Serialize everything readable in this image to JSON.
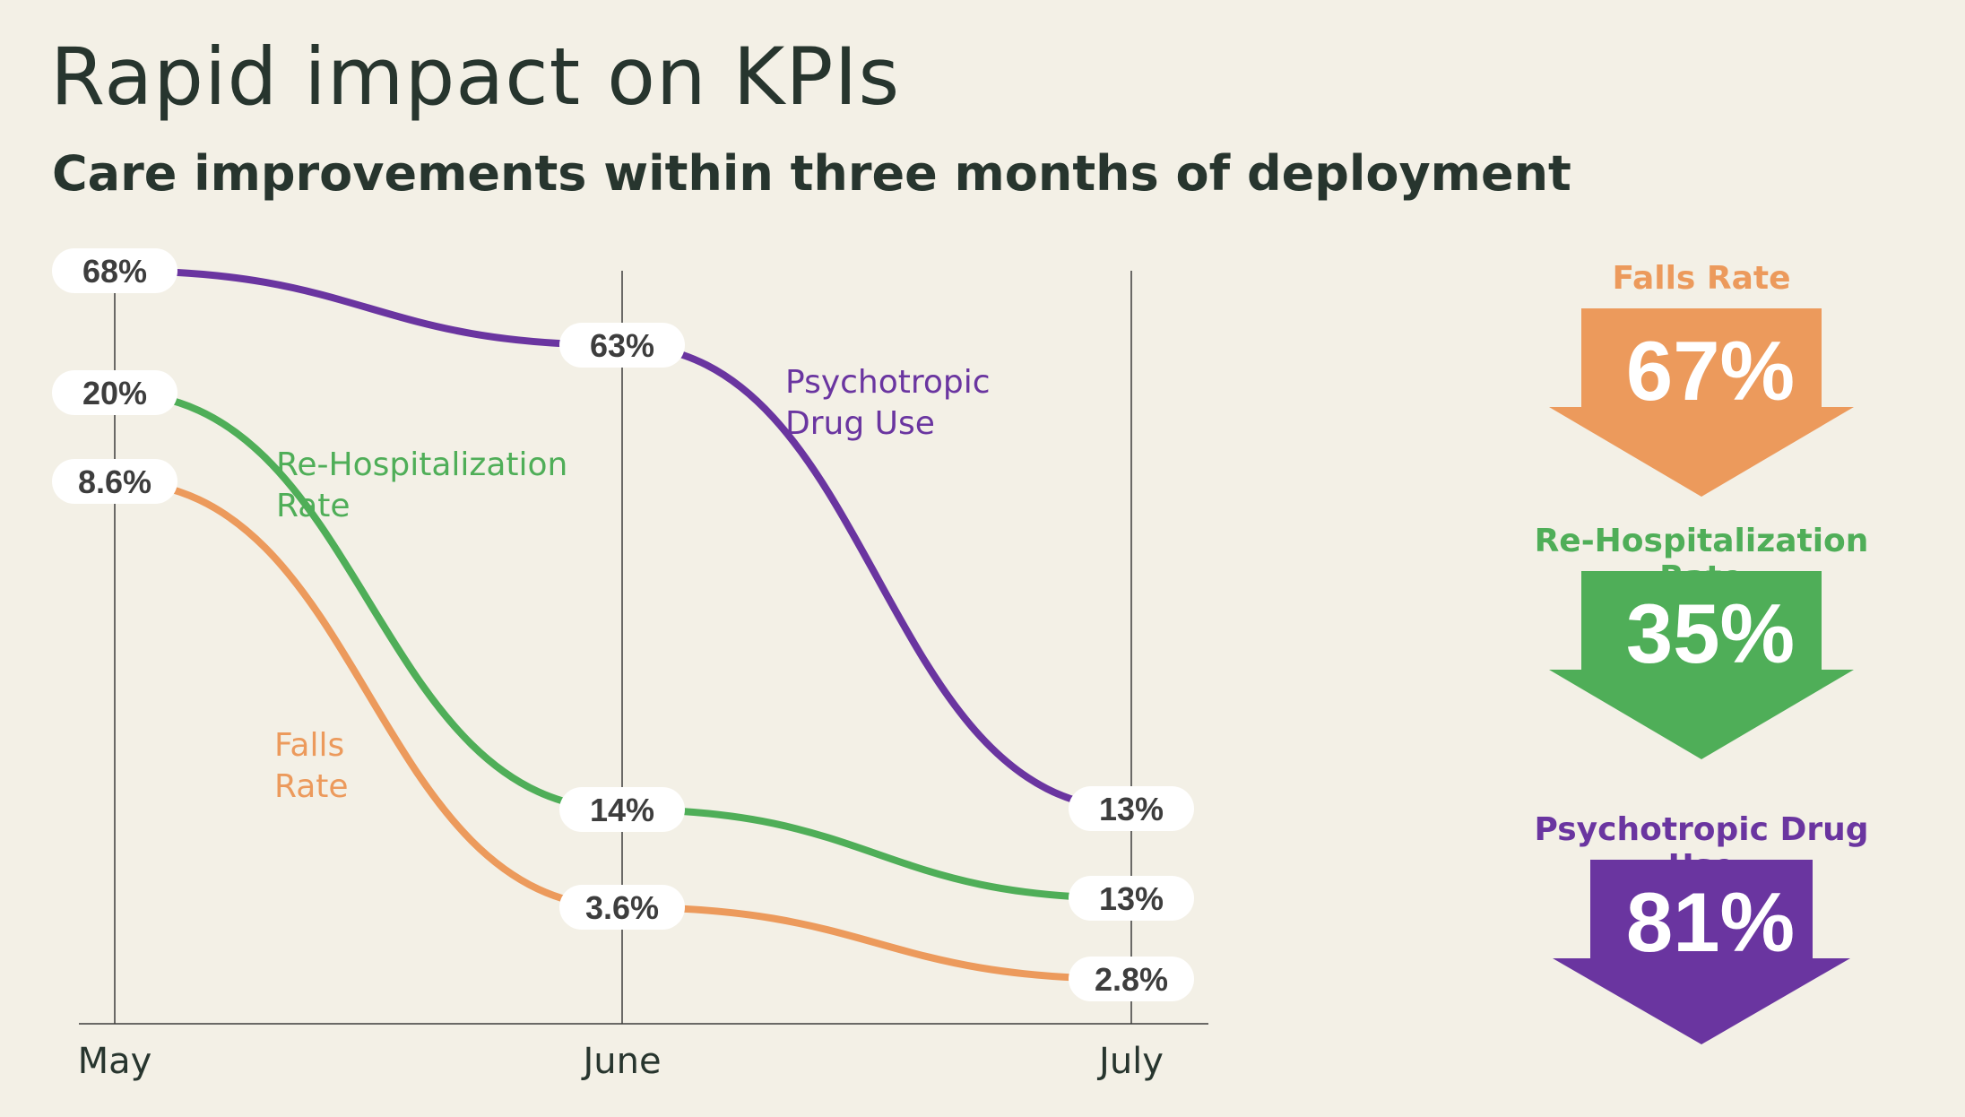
{
  "title": "Rapid impact on KPIs",
  "subtitle": "Care improvements within three months of deployment",
  "colors": {
    "falls": "#ec9a5c",
    "rehosp": "#4fae58",
    "psycho": "#6a35a0",
    "text": "#27352e",
    "axis": "#3c3c3c"
  },
  "chart_data": {
    "type": "line",
    "x": [
      "May",
      "June",
      "July"
    ],
    "series": [
      {
        "name": "Psychotropic Drug Use",
        "values": [
          68,
          63,
          13
        ],
        "labels": [
          "68%",
          "63%",
          "13%"
        ],
        "color": "#6a35a0"
      },
      {
        "name": "Re-Hospitalization Rate",
        "values": [
          20,
          14,
          13
        ],
        "labels": [
          "20%",
          "14%",
          "13%"
        ],
        "color": "#4fae58"
      },
      {
        "name": "Falls Rate",
        "values": [
          8.6,
          3.6,
          2.8
        ],
        "labels": [
          "8.6%",
          "3.6%",
          "2.8%"
        ],
        "color": "#ec9a5c"
      }
    ],
    "series_labels": [
      {
        "lines": [
          "Psychotropic",
          "Drug Use"
        ],
        "color": "#6a35a0"
      },
      {
        "lines": [
          "Re-Hospitalization",
          "Rate"
        ],
        "color": "#4fae58"
      },
      {
        "lines": [
          "Falls",
          "Rate"
        ],
        "color": "#ec9a5c"
      }
    ],
    "grid": "vertical"
  },
  "kpis": [
    {
      "label": "Falls Rate",
      "value": "67%",
      "color": "#ec9a5c"
    },
    {
      "label": "Re-Hospitalization Rate",
      "value": "35%",
      "color": "#4fae58"
    },
    {
      "label": "Psychotropic Drug Use",
      "value": "81%",
      "color": "#6a35a0"
    }
  ]
}
